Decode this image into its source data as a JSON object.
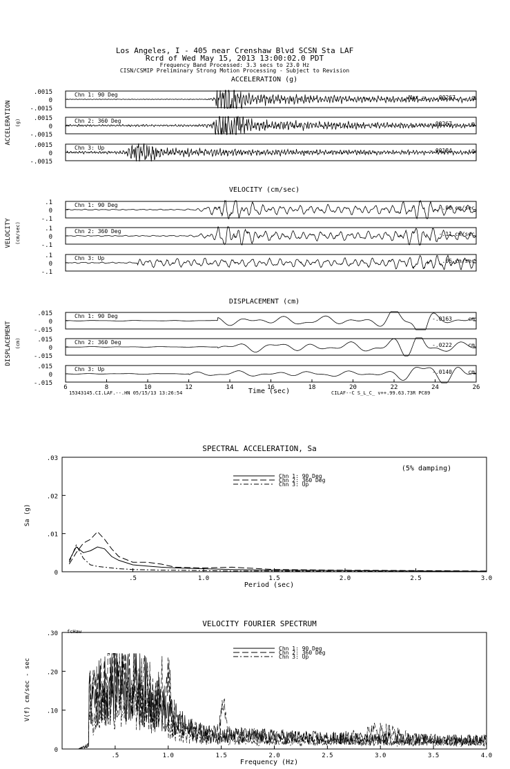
{
  "header": {
    "line1": "Los Angeles, I - 405 near Crenshaw Blvd    SCSN Sta LAF",
    "line2": "Rcrd of Wed May 15, 2013 13:00:02.0 PDT",
    "line3": "Frequency Band Processed: 3.3 secs to 23.0 Hz",
    "line4": "CISN/CSMIP Preliminary Strong Motion Processing - Subject to Revision"
  },
  "chart_data": [
    {
      "type": "line",
      "title": "ACCELERATION (g)",
      "ylabel": "ACCELERATION",
      "ylabel_unit": "(g)",
      "xlim": [
        6,
        26
      ],
      "ylim": [
        -0.0015,
        0.0015
      ],
      "ytick_labels": [
        ".0015",
        "0",
        "-.0015"
      ],
      "max_label": "Max =",
      "series": [
        {
          "name": "Chn 1: 90 Deg",
          "peak_label": ".00267",
          "unit": "g",
          "peak": 0.00267
        },
        {
          "name": "Chn 2: 360 Deg",
          "peak_label": "-.00267",
          "unit": "g",
          "peak": -0.00267
        },
        {
          "name": "Chn 3: Up",
          "peak_label": "-.00184",
          "unit": "g",
          "peak": -0.00184
        }
      ]
    },
    {
      "type": "line",
      "title": "VELOCITY (cm/sec)",
      "ylabel": "VELOCITY",
      "ylabel_unit": "(cm/sec)",
      "xlim": [
        6,
        26
      ],
      "ylim": [
        -0.1,
        0.1
      ],
      "ytick_labels": [
        ".1",
        "0",
        "-.1"
      ],
      "series": [
        {
          "name": "Chn 1: 90 Deg",
          "peak_label": "-.06",
          "unit": "cm/sec",
          "peak": -0.06
        },
        {
          "name": "Chn 2: 360 Deg",
          "peak_label": "-.11",
          "unit": "cm/sec",
          "peak": -0.11
        },
        {
          "name": "Chn 3: Up",
          "peak_label": ".06",
          "unit": "cm/sec",
          "peak": 0.06
        }
      ]
    },
    {
      "type": "line",
      "title": "DISPLACEMENT (cm)",
      "ylabel": "DISPLACEMENT",
      "ylabel_unit": "(cm)",
      "xlabel": "Time (sec)",
      "xlim": [
        6,
        26
      ],
      "xticks": [
        6,
        8,
        10,
        12,
        14,
        16,
        18,
        20,
        22,
        24,
        26
      ],
      "ylim": [
        -0.015,
        0.015
      ],
      "ytick_labels": [
        ".015",
        "0",
        "-.015"
      ],
      "series": [
        {
          "name": "Chn 1: 90 Deg",
          "peak_label": "-.0163",
          "unit": "cm",
          "peak": -0.0163
        },
        {
          "name": "Chn 2: 360 Deg",
          "peak_label": "-.0222",
          "unit": "cm",
          "peak": -0.0222
        },
        {
          "name": "Chn 3: Up",
          "peak_label": "-.0140",
          "unit": "cm",
          "peak": -0.014
        }
      ],
      "footer_left": "15343145.CI.LAF.--.HN 05/15/13 13:26:54",
      "footer_right": "CILAF--C  S_L_C_  v++.99.63.73R PC89"
    },
    {
      "type": "line",
      "title": "SPECTRAL ACCELERATION, Sa",
      "xlabel": "Period (sec)",
      "ylabel": "Sa (g)",
      "xlim": [
        0,
        3.0
      ],
      "ylim": [
        0,
        0.03
      ],
      "xtick_labels": [
        ".5",
        "1.0",
        "1.5",
        "2.0",
        "2.5",
        "3.0"
      ],
      "xticks": [
        0.5,
        1.0,
        1.5,
        2.0,
        2.5,
        3.0
      ],
      "ytick_labels": [
        ".03",
        ".02",
        ".01",
        "0"
      ],
      "yticks": [
        0.03,
        0.02,
        0.01,
        0
      ],
      "annotation": "(5% damping)",
      "x": [
        0.05,
        0.1,
        0.15,
        0.2,
        0.25,
        0.3,
        0.35,
        0.4,
        0.5,
        0.6,
        0.7,
        0.8,
        1.0,
        1.2,
        1.5,
        2.0,
        2.5,
        3.0
      ],
      "series": [
        {
          "name": "Chn 1: 90 Deg",
          "dash": "solid",
          "values": [
            0.003,
            0.0065,
            0.005,
            0.0055,
            0.0065,
            0.006,
            0.004,
            0.003,
            0.0018,
            0.0015,
            0.0012,
            0.001,
            0.0008,
            0.0006,
            0.0004,
            0.0003,
            0.0002,
            0.0001
          ]
        },
        {
          "name": "Chn 2: 360 Deg",
          "dash": "long",
          "values": [
            0.002,
            0.005,
            0.0075,
            0.0085,
            0.0105,
            0.0085,
            0.006,
            0.004,
            0.0025,
            0.0025,
            0.002,
            0.0012,
            0.001,
            0.0012,
            0.0006,
            0.0004,
            0.0003,
            0.0002
          ]
        },
        {
          "name": "Chn 3: Up",
          "dash": "dashdot",
          "values": [
            0.0025,
            0.007,
            0.0035,
            0.0018,
            0.0014,
            0.0012,
            0.001,
            0.0008,
            0.0006,
            0.0005,
            0.0004,
            0.0004,
            0.0003,
            0.0002,
            0.0002,
            0.0001,
            0.0001,
            0.0001
          ]
        }
      ]
    },
    {
      "type": "line",
      "title": "VELOCITY FOURIER SPECTRUM",
      "xlabel": "Frequency (Hz)",
      "ylabel": "V(f)  cm/sec - sec",
      "corner_label": "fcHaw",
      "xlim": [
        0,
        4.0
      ],
      "ylim": [
        0,
        0.3
      ],
      "xtick_labels": [
        ".5",
        "1.0",
        "1.5",
        "2.0",
        "2.5",
        "3.0",
        "3.5",
        "4.0"
      ],
      "xticks": [
        0.5,
        1.0,
        1.5,
        2.0,
        2.5,
        3.0,
        3.5,
        4.0
      ],
      "ytick_labels": [
        ".30",
        ".20",
        ".10",
        "0"
      ],
      "yticks": [
        0.3,
        0.2,
        0.1,
        0
      ],
      "series": [
        {
          "name": "Chn 1: 90 Deg",
          "dash": "solid",
          "peak_freq": 0.47,
          "peak": 0.2
        },
        {
          "name": "Chn 2: 360 Deg",
          "dash": "long",
          "peak_freq": 0.47,
          "peak": 0.24
        },
        {
          "name": "Chn 3: Up",
          "dash": "dashdot",
          "peak_freq": 0.55,
          "peak": 0.18
        }
      ]
    }
  ]
}
